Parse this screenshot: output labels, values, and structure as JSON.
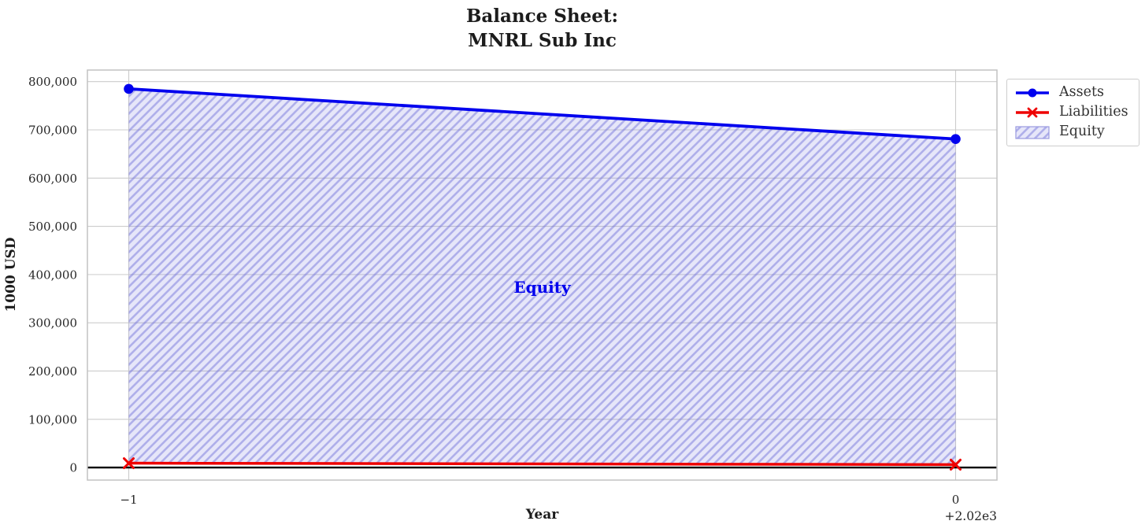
{
  "chart_data": {
    "type": "line",
    "title": "Balance Sheet:\nMNRL Sub Inc",
    "xlabel": "Year",
    "ylabel": "1000 USD",
    "x_tick_values": [
      -1,
      0
    ],
    "x_tick_labels": [
      "−1",
      "0"
    ],
    "x_offset_label": "+2.02e3",
    "x_values_with_offset": [
      2019,
      2020
    ],
    "series": [
      {
        "name": "Assets",
        "marker": "circle",
        "color": "#0000ee",
        "values": [
          785000,
          681000
        ]
      },
      {
        "name": "Liabilities",
        "marker": "x",
        "color": "#ee0000",
        "values": [
          9000,
          6000
        ]
      }
    ],
    "area": {
      "name": "Equity",
      "between": [
        "Liabilities",
        "Assets"
      ],
      "facecolor": "#8282e0",
      "face_opacity": 0.2,
      "hatch": "/",
      "hatchcolor": "#6c6cd8",
      "hatch_opacity": 0.45
    },
    "annotation": {
      "text": "Equity",
      "color": "#0000ee",
      "x": -0.5,
      "y": 372000
    },
    "y_ticks": [
      0,
      100000,
      200000,
      300000,
      400000,
      500000,
      600000,
      700000,
      800000
    ],
    "y_tick_labels": [
      "0",
      "100,000",
      "200,000",
      "300,000",
      "400,000",
      "500,000",
      "600,000",
      "700,000",
      "800,000"
    ],
    "xlim": [
      -1.05,
      0.05
    ],
    "ylim": [
      -26000,
      824000
    ],
    "grid": true,
    "grid_color": "#cccccc",
    "spine_color": "#c2c2c2",
    "zero_line": 0,
    "zero_line_color": "#000000",
    "legend": {
      "position": "outside-upper-right",
      "entries": [
        "Assets",
        "Liabilities",
        "Equity"
      ]
    }
  }
}
